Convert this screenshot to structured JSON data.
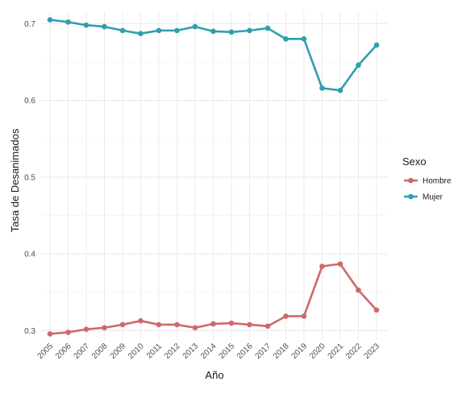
{
  "chart_data": {
    "type": "line",
    "title": "",
    "xlabel": "Año",
    "ylabel": "Tasa de Desanimados",
    "x": [
      "2005",
      "2006",
      "2007",
      "2008",
      "2009",
      "2010",
      "2011",
      "2012",
      "2013",
      "2014",
      "2015",
      "2016",
      "2017",
      "2018",
      "2019",
      "2020",
      "2021",
      "2022",
      "2023"
    ],
    "yticks": [
      "0.3",
      "0.4",
      "0.5",
      "0.6",
      "0.7"
    ],
    "ylim": [
      0.288,
      0.715
    ],
    "grid": true,
    "legend": {
      "title": "Sexo",
      "position": "right"
    },
    "series": [
      {
        "name": "Hombre",
        "color": "#cd6a69",
        "values": [
          0.296,
          0.298,
          0.302,
          0.304,
          0.308,
          0.313,
          0.308,
          0.308,
          0.304,
          0.309,
          0.31,
          0.308,
          0.306,
          0.319,
          0.319,
          0.384,
          0.387,
          0.353,
          0.327
        ]
      },
      {
        "name": "Mujer",
        "color": "#2f9fae",
        "values": [
          0.705,
          0.702,
          0.698,
          0.696,
          0.691,
          0.687,
          0.691,
          0.691,
          0.696,
          0.69,
          0.689,
          0.691,
          0.694,
          0.68,
          0.68,
          0.616,
          0.613,
          0.646,
          0.672
        ]
      }
    ]
  }
}
